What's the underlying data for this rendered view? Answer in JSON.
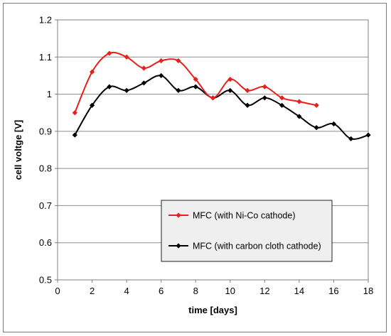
{
  "chart_data": {
    "type": "line",
    "xlabel": "time [days]",
    "ylabel": "cell voltge [V]",
    "xlim": [
      0,
      18
    ],
    "ylim": [
      0.5,
      1.2
    ],
    "xticks": [
      0,
      2,
      4,
      6,
      8,
      10,
      12,
      14,
      16,
      18
    ],
    "yticks": [
      0.5,
      0.6,
      0.7,
      0.8,
      0.9,
      1,
      1.1,
      1.2
    ],
    "ytick_labels": [
      "0.5",
      "0.6",
      "0.7",
      "0.8",
      "0.9",
      "1",
      "1.1",
      "1.2"
    ],
    "grid": "horizontal",
    "legend_position": "center-right",
    "series": [
      {
        "name": "MFC (with Ni-Co cathode)",
        "color": "#e8201c",
        "marker": "diamond",
        "x": [
          1,
          2,
          3,
          4,
          5,
          6,
          7,
          8,
          9,
          10,
          11,
          12,
          13,
          14,
          15
        ],
        "y": [
          0.95,
          1.06,
          1.11,
          1.1,
          1.07,
          1.09,
          1.09,
          1.04,
          0.99,
          1.04,
          1.01,
          1.02,
          0.99,
          0.98,
          0.97
        ]
      },
      {
        "name": "MFC (with carbon cloth cathode)",
        "color": "#000000",
        "marker": "diamond",
        "x": [
          1,
          2,
          3,
          4,
          5,
          6,
          7,
          8,
          9,
          10,
          11,
          12,
          13,
          14,
          15,
          16,
          17,
          18
        ],
        "y": [
          0.89,
          0.97,
          1.02,
          1.01,
          1.03,
          1.05,
          1.01,
          1.02,
          0.99,
          1.01,
          0.97,
          0.99,
          0.97,
          0.94,
          0.91,
          0.92,
          0.88,
          0.89
        ]
      }
    ]
  }
}
